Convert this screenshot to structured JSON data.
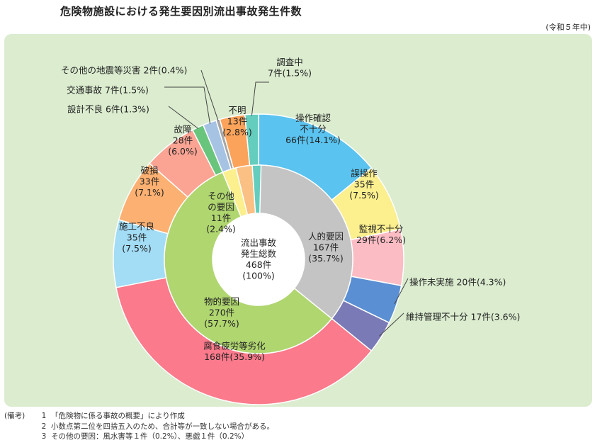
{
  "title": "危険物施設における発生要因別流出事故発生件数",
  "fiscal_year": "(令和５年中)",
  "notes": {
    "heading": "(備考)",
    "items": [
      {
        "num": "1",
        "text": "「危険物に係る事故の概要」により作成"
      },
      {
        "num": "2",
        "text": "小数点第二位を四捨五入のため、合計等が一致しない場合がある。"
      },
      {
        "num": "3",
        "text": "その他の要因：風水害等１件（0.2%）、悪戯１件（0.2%）"
      }
    ]
  },
  "chart_data": {
    "type": "pie",
    "subtype": "nested-donut",
    "center_label": [
      "流出事故",
      "発生総数",
      "468件",
      "(100%)"
    ],
    "inner_ring": [
      {
        "lines": [
          "人的要因",
          "167件",
          "(35.7%)"
        ],
        "value": 167,
        "percent": 35.7,
        "color": "#c4c4c4"
      },
      {
        "lines": [
          "物的要因",
          "270件",
          "(57.7%)"
        ],
        "value": 270,
        "percent": 57.7,
        "color": "#b0d670"
      },
      {
        "lines": [
          "その他",
          "の要因",
          "11件",
          "(2.4%)"
        ],
        "value": 11,
        "percent": 2.4,
        "color": "#fbef8e"
      },
      {
        "lines": [],
        "value": 13,
        "percent": 2.8,
        "color": "#fac084"
      },
      {
        "lines": [],
        "value": 7,
        "percent": 1.5,
        "color": "#64cdbd"
      }
    ],
    "outer_ring": [
      {
        "lines": [
          "操作確認",
          "不十分",
          "66件(14.1%)"
        ],
        "value": 66,
        "percent": 14.1,
        "color": "#5ac3ef"
      },
      {
        "lines": [
          "誤操作",
          "35件",
          "(7.5%)"
        ],
        "value": 35,
        "percent": 7.5,
        "color": "#fbef8e"
      },
      {
        "lines": [
          "監視不十分",
          "29件(6.2%)"
        ],
        "value": 29,
        "percent": 6.2,
        "color": "#fcbcc4"
      },
      {
        "lines": [
          "操作未実施 20件(4.3%)"
        ],
        "value": 20,
        "percent": 4.3,
        "color": "#5a8fd3"
      },
      {
        "lines": [
          "維持管理不十分 17件(3.6%)"
        ],
        "value": 17,
        "percent": 3.6,
        "color": "#7a7ab6"
      },
      {
        "lines": [
          "腐食疲労等劣化",
          "168件(35.9%)"
        ],
        "value": 168,
        "percent": 35.9,
        "color": "#fb7a8b"
      },
      {
        "lines": [
          "施工不良",
          "35件",
          "(7.5%)"
        ],
        "value": 35,
        "percent": 7.5,
        "color": "#a2dcf5"
      },
      {
        "lines": [
          "破損",
          "33件",
          "(7.1%)"
        ],
        "value": 33,
        "percent": 7.1,
        "color": "#fcb071"
      },
      {
        "lines": [
          "故障",
          "28件",
          "(6.0%)"
        ],
        "value": 28,
        "percent": 6.0,
        "color": "#fba494"
      },
      {
        "lines": [
          "設計不良 6件(1.3%)"
        ],
        "value": 6,
        "percent": 1.3,
        "color": "#69c57c"
      },
      {
        "lines": [
          "交通事故 7件(1.5%)"
        ],
        "value": 7,
        "percent": 1.5,
        "color": "#a7c3e4"
      },
      {
        "lines": [
          "その他の地震等災害 2件(0.4%)"
        ],
        "value": 2,
        "percent": 0.4,
        "color": "#a6a6a6"
      },
      {
        "lines": [
          "不明",
          "13件",
          "(2.8%)"
        ],
        "value": 13,
        "percent": 2.8,
        "color": "#fba35a"
      },
      {
        "lines": [
          "調査中",
          "7件(1.5%)"
        ],
        "value": 7,
        "percent": 1.5,
        "color": "#64cdbd"
      }
    ]
  }
}
